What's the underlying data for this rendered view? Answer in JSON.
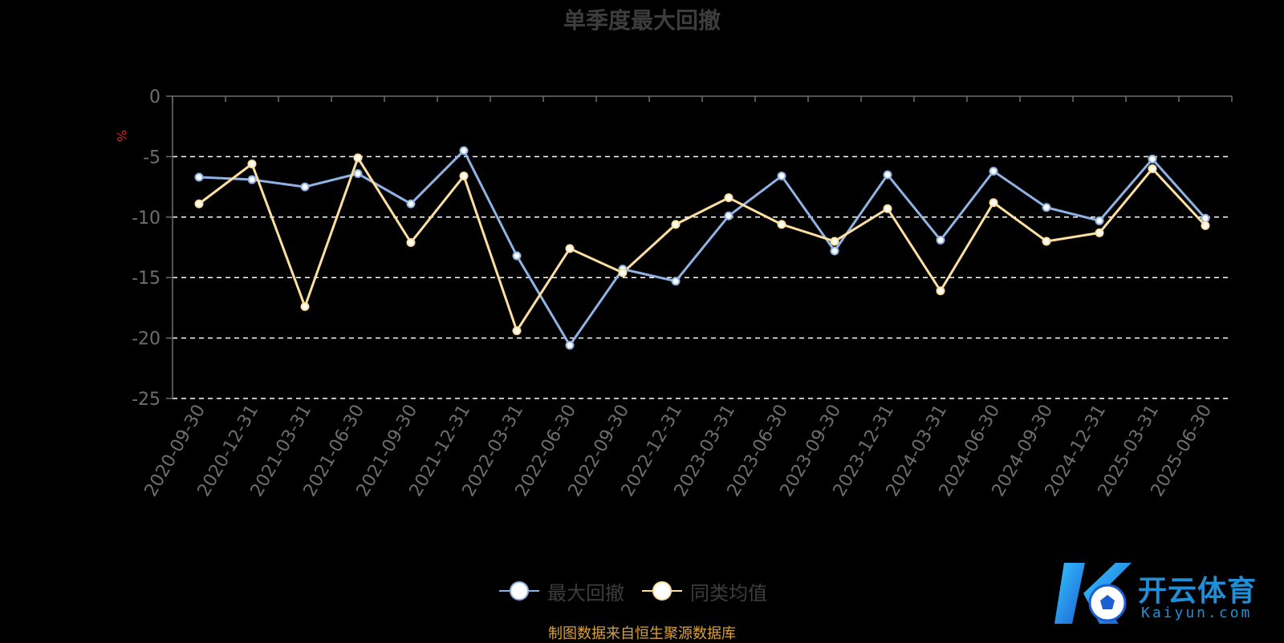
{
  "chart_data": {
    "type": "line",
    "title": "单季度最大回撤",
    "ylabel": "%",
    "ylim": [
      -25,
      0
    ],
    "yticks": [
      0,
      -5,
      -10,
      -15,
      -20,
      -25
    ],
    "grid": "dashed-horizontal",
    "legend_position": "bottom-center",
    "categories": [
      "2020-09-30",
      "2020-12-31",
      "2021-03-31",
      "2021-06-30",
      "2021-09-30",
      "2021-12-31",
      "2022-03-31",
      "2022-06-30",
      "2022-09-30",
      "2022-12-31",
      "2023-03-31",
      "2023-06-30",
      "2023-09-30",
      "2023-12-31",
      "2024-03-31",
      "2024-06-30",
      "2024-09-30",
      "2024-12-31",
      "2025-03-31",
      "2025-06-30"
    ],
    "series": [
      {
        "name": "最大回撤",
        "color": "#8fb3e3",
        "values": [
          -6.7,
          -6.9,
          -7.5,
          -6.4,
          -8.9,
          -4.5,
          -13.2,
          -20.6,
          -14.3,
          -15.3,
          -9.9,
          -6.6,
          -12.8,
          -6.5,
          -11.9,
          -6.2,
          -9.2,
          -10.3,
          -5.2,
          -10.1
        ]
      },
      {
        "name": "同类均值",
        "color": "#fddf9f",
        "values": [
          -8.9,
          -5.6,
          -17.4,
          -5.1,
          -12.1,
          -6.6,
          -19.4,
          -12.6,
          -14.6,
          -10.6,
          -8.4,
          -10.6,
          -12.0,
          -9.3,
          -16.1,
          -8.8,
          -12.0,
          -11.3,
          -6.0,
          -10.7
        ]
      }
    ]
  },
  "source_note": "制图数据来自恒生聚源数据库",
  "watermark": {
    "name_cn": "开云体育",
    "name_en": "Kaiyun.com"
  },
  "colors": {
    "background": "#000000",
    "axis": "#6e6e6e",
    "tick_label": "#6e6e6e",
    "ylabel": "#e02020",
    "grid": "#ffffff",
    "title": "#3d3d3d",
    "note": "#d9a23b",
    "logo": "#1f8fd8"
  }
}
